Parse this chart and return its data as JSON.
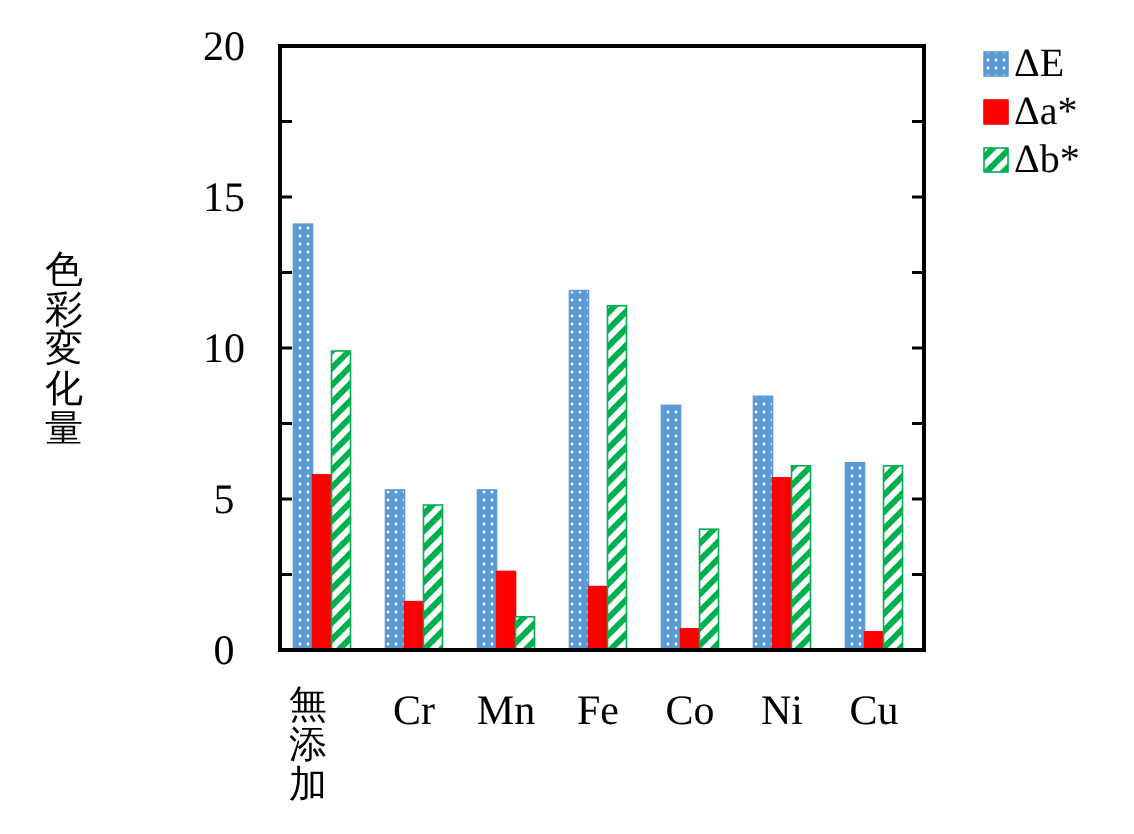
{
  "chart_data": {
    "type": "bar",
    "ylabel": "色彩変化量",
    "categories": [
      "無添加",
      "Cr",
      "Mn",
      "Fe",
      "Co",
      "Ni",
      "Cu"
    ],
    "series": [
      {
        "name": "ΔE",
        "color": "#5b9bd5",
        "values": [
          14.1,
          5.3,
          5.3,
          11.9,
          8.1,
          8.4,
          6.2
        ]
      },
      {
        "name": "Δa*",
        "color": "#ff0000",
        "values": [
          5.8,
          1.6,
          2.6,
          2.1,
          0.7,
          5.7,
          0.6
        ]
      },
      {
        "name": "Δb*",
        "color": "#00b050",
        "values": [
          9.9,
          4.8,
          1.1,
          11.4,
          4.0,
          6.1,
          6.1
        ]
      }
    ],
    "ylim": [
      0,
      20
    ],
    "yticks": [
      0,
      {
        "value": 2.5,
        "label": null
      },
      5,
      {
        "value": 7.5,
        "label": null
      },
      10,
      {
        "value": 12.5,
        "label": null
      },
      15,
      {
        "value": 17.5,
        "label": null
      },
      20
    ],
    "grid": false,
    "legend": "top right"
  }
}
